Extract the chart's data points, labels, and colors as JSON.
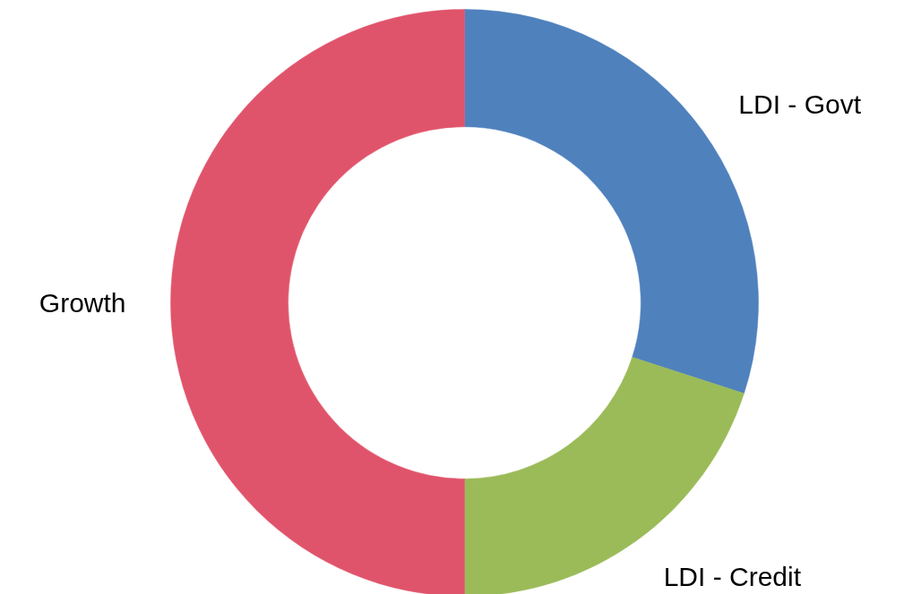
{
  "chart_data": {
    "type": "donut",
    "categories": [
      "LDI - Govt",
      "LDI - Credit",
      "Growth"
    ],
    "values": [
      30,
      20,
      50
    ],
    "colors": [
      "#4f81bd",
      "#9bbb59",
      "#e0546b"
    ]
  }
}
